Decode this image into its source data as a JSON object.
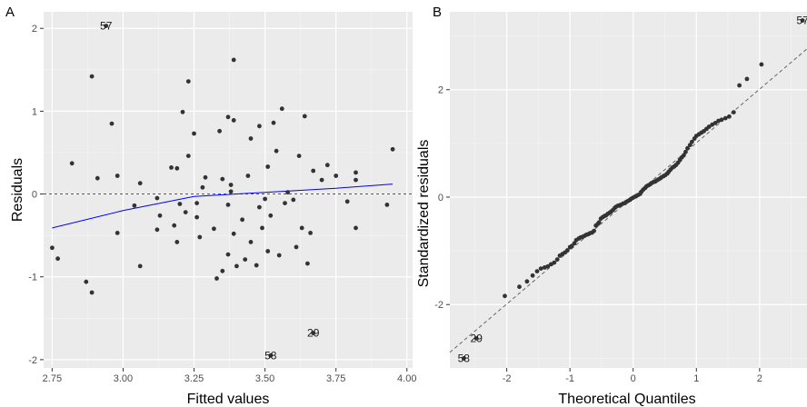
{
  "chart_data": [
    {
      "panel": "A",
      "type": "scatter",
      "xlabel": "Fitted values",
      "ylabel": "Residuals",
      "xlim": [
        2.72,
        4.02
      ],
      "ylim": [
        -2.1,
        2.2
      ],
      "x_ticks": [
        2.75,
        3.0,
        3.25,
        3.5,
        3.75,
        4.0
      ],
      "x_tick_labels": [
        "2.75",
        "3.00",
        "3.25",
        "3.50",
        "3.75",
        "4.00"
      ],
      "y_ticks": [
        -2,
        -1,
        0,
        1,
        2
      ],
      "y_tick_labels": [
        "-2",
        "-1",
        "0",
        "1",
        "2"
      ],
      "grid": true,
      "reference_line": {
        "y": 0,
        "style": "dashed"
      },
      "points": [
        {
          "x": 2.75,
          "y": -0.65
        },
        {
          "x": 2.77,
          "y": -0.78
        },
        {
          "x": 2.82,
          "y": 0.37
        },
        {
          "x": 2.87,
          "y": -1.06
        },
        {
          "x": 2.89,
          "y": -1.19
        },
        {
          "x": 2.89,
          "y": 1.42
        },
        {
          "x": 2.91,
          "y": 0.19
        },
        {
          "x": 2.96,
          "y": 0.85
        },
        {
          "x": 2.98,
          "y": -0.47
        },
        {
          "x": 2.98,
          "y": 0.22
        },
        {
          "x": 3.04,
          "y": -0.14
        },
        {
          "x": 3.06,
          "y": -0.87
        },
        {
          "x": 3.06,
          "y": 0.13
        },
        {
          "x": 3.12,
          "y": -0.05
        },
        {
          "x": 3.12,
          "y": -0.43
        },
        {
          "x": 3.13,
          "y": -0.26
        },
        {
          "x": 3.17,
          "y": 0.32
        },
        {
          "x": 3.18,
          "y": -0.38
        },
        {
          "x": 3.19,
          "y": 0.31
        },
        {
          "x": 3.19,
          "y": -0.58
        },
        {
          "x": 3.2,
          "y": -0.12
        },
        {
          "x": 3.21,
          "y": 0.99
        },
        {
          "x": 3.22,
          "y": -0.22
        },
        {
          "x": 3.23,
          "y": 1.36
        },
        {
          "x": 3.23,
          "y": 0.46
        },
        {
          "x": 3.25,
          "y": 0.73
        },
        {
          "x": 3.26,
          "y": -0.11
        },
        {
          "x": 3.26,
          "y": -0.28
        },
        {
          "x": 3.27,
          "y": -0.52
        },
        {
          "x": 3.28,
          "y": 0.08
        },
        {
          "x": 3.29,
          "y": 0.2
        },
        {
          "x": 3.32,
          "y": -0.42
        },
        {
          "x": 3.33,
          "y": -1.02
        },
        {
          "x": 3.34,
          "y": 0.76
        },
        {
          "x": 3.35,
          "y": -0.93
        },
        {
          "x": 3.35,
          "y": 0.18
        },
        {
          "x": 3.37,
          "y": -0.73
        },
        {
          "x": 3.37,
          "y": -0.13
        },
        {
          "x": 3.37,
          "y": 0.93
        },
        {
          "x": 3.38,
          "y": 0.11
        },
        {
          "x": 3.38,
          "y": 0.03
        },
        {
          "x": 3.39,
          "y": 1.62
        },
        {
          "x": 3.39,
          "y": -0.48
        },
        {
          "x": 3.39,
          "y": 0.89
        },
        {
          "x": 3.4,
          "y": -0.87
        },
        {
          "x": 3.42,
          "y": -0.31
        },
        {
          "x": 3.43,
          "y": -0.79
        },
        {
          "x": 3.44,
          "y": 0.22
        },
        {
          "x": 3.45,
          "y": -0.58
        },
        {
          "x": 3.45,
          "y": 0.67
        },
        {
          "x": 3.47,
          "y": -0.86
        },
        {
          "x": 3.48,
          "y": -0.16
        },
        {
          "x": 3.48,
          "y": 0.82
        },
        {
          "x": 3.49,
          "y": -0.41
        },
        {
          "x": 3.5,
          "y": -0.06
        },
        {
          "x": 3.51,
          "y": -0.69
        },
        {
          "x": 3.51,
          "y": 0.33
        },
        {
          "x": 3.52,
          "y": -0.26
        },
        {
          "x": 3.53,
          "y": 0.86
        },
        {
          "x": 3.54,
          "y": 0.52
        },
        {
          "x": 3.55,
          "y": -0.74
        },
        {
          "x": 3.56,
          "y": 1.03
        },
        {
          "x": 3.57,
          "y": -0.11
        },
        {
          "x": 3.58,
          "y": 0.02
        },
        {
          "x": 3.6,
          "y": -0.07
        },
        {
          "x": 3.61,
          "y": -0.64
        },
        {
          "x": 3.62,
          "y": 0.46
        },
        {
          "x": 3.63,
          "y": -0.41
        },
        {
          "x": 3.64,
          "y": 0.94
        },
        {
          "x": 3.65,
          "y": -0.84
        },
        {
          "x": 3.66,
          "y": -0.47
        },
        {
          "x": 3.67,
          "y": 0.28
        },
        {
          "x": 3.7,
          "y": 0.17
        },
        {
          "x": 3.72,
          "y": 0.35
        },
        {
          "x": 3.75,
          "y": 0.22
        },
        {
          "x": 3.79,
          "y": -0.09
        },
        {
          "x": 3.82,
          "y": 0.17
        },
        {
          "x": 3.82,
          "y": 0.26
        },
        {
          "x": 3.82,
          "y": -0.41
        },
        {
          "x": 3.93,
          "y": -0.13
        },
        {
          "x": 3.95,
          "y": 0.54
        }
      ],
      "smooth_line": {
        "color": "#0000ff",
        "points": [
          [
            2.75,
            -0.41
          ],
          [
            3.0,
            -0.2
          ],
          [
            3.25,
            -0.03
          ],
          [
            3.5,
            0.02
          ],
          [
            3.75,
            0.07
          ],
          [
            3.95,
            0.12
          ]
        ]
      },
      "labeled_points": [
        {
          "x": 2.94,
          "y": 2.03,
          "label": "57"
        },
        {
          "x": 3.52,
          "y": -1.95,
          "label": "58"
        },
        {
          "x": 3.67,
          "y": -1.68,
          "label": "29"
        }
      ]
    },
    {
      "panel": "B",
      "type": "scatter",
      "xlabel": "Theoretical Quantiles",
      "ylabel": "Standardized residuals",
      "xlim": [
        -2.9,
        2.75
      ],
      "ylim": [
        -3.18,
        3.45
      ],
      "x_ticks": [
        -2,
        -1,
        0,
        1,
        2
      ],
      "x_tick_labels": [
        "-2",
        "-1",
        "0",
        "1",
        "2"
      ],
      "y_ticks": [
        -2,
        0,
        2
      ],
      "y_tick_labels": [
        "-2",
        "0",
        "2"
      ],
      "grid": true,
      "reference_line": {
        "intercept": 0.01,
        "slope": 1.0,
        "style": "dashed"
      },
      "points": [
        {
          "x": -2.03,
          "y": -1.84
        },
        {
          "x": -1.8,
          "y": -1.67
        },
        {
          "x": -1.68,
          "y": -1.57
        },
        {
          "x": -1.59,
          "y": -1.46
        },
        {
          "x": -1.52,
          "y": -1.38
        },
        {
          "x": -1.46,
          "y": -1.33
        },
        {
          "x": -1.4,
          "y": -1.31
        },
        {
          "x": -1.35,
          "y": -1.29
        },
        {
          "x": -1.3,
          "y": -1.25
        },
        {
          "x": -1.25,
          "y": -1.22
        },
        {
          "x": -1.2,
          "y": -1.16
        },
        {
          "x": -1.16,
          "y": -1.09
        },
        {
          "x": -1.12,
          "y": -1.06
        },
        {
          "x": -1.08,
          "y": -1.03
        },
        {
          "x": -1.04,
          "y": -0.99
        },
        {
          "x": -1.0,
          "y": -0.93
        },
        {
          "x": -0.97,
          "y": -0.91
        },
        {
          "x": -0.93,
          "y": -0.86
        },
        {
          "x": -0.9,
          "y": -0.8
        },
        {
          "x": -0.86,
          "y": -0.77
        },
        {
          "x": -0.83,
          "y": -0.75
        },
        {
          "x": -0.8,
          "y": -0.74
        },
        {
          "x": -0.77,
          "y": -0.72
        },
        {
          "x": -0.74,
          "y": -0.7
        },
        {
          "x": -0.71,
          "y": -0.69
        },
        {
          "x": -0.68,
          "y": -0.67
        },
        {
          "x": -0.65,
          "y": -0.66
        },
        {
          "x": -0.62,
          "y": -0.63
        },
        {
          "x": -0.59,
          "y": -0.53
        },
        {
          "x": -0.56,
          "y": -0.5
        },
        {
          "x": -0.54,
          "y": -0.47
        },
        {
          "x": -0.51,
          "y": -0.4
        },
        {
          "x": -0.48,
          "y": -0.37
        },
        {
          "x": -0.45,
          "y": -0.35
        },
        {
          "x": -0.43,
          "y": -0.34
        },
        {
          "x": -0.4,
          "y": -0.31
        },
        {
          "x": -0.37,
          "y": -0.29
        },
        {
          "x": -0.35,
          "y": -0.27
        },
        {
          "x": -0.32,
          "y": -0.24
        },
        {
          "x": -0.29,
          "y": -0.2
        },
        {
          "x": -0.27,
          "y": -0.18
        },
        {
          "x": -0.24,
          "y": -0.16
        },
        {
          "x": -0.21,
          "y": -0.15
        },
        {
          "x": -0.19,
          "y": -0.14
        },
        {
          "x": -0.16,
          "y": -0.12
        },
        {
          "x": -0.13,
          "y": -0.11
        },
        {
          "x": -0.11,
          "y": -0.09
        },
        {
          "x": -0.08,
          "y": -0.07
        },
        {
          "x": -0.05,
          "y": -0.05
        },
        {
          "x": -0.03,
          "y": -0.03
        },
        {
          "x": 0.0,
          "y": -0.01
        },
        {
          "x": 0.03,
          "y": 0.01
        },
        {
          "x": 0.05,
          "y": 0.02
        },
        {
          "x": 0.08,
          "y": 0.04
        },
        {
          "x": 0.11,
          "y": 0.06
        },
        {
          "x": 0.13,
          "y": 0.1
        },
        {
          "x": 0.16,
          "y": 0.14
        },
        {
          "x": 0.19,
          "y": 0.17
        },
        {
          "x": 0.21,
          "y": 0.2
        },
        {
          "x": 0.24,
          "y": 0.22
        },
        {
          "x": 0.27,
          "y": 0.24
        },
        {
          "x": 0.29,
          "y": 0.26
        },
        {
          "x": 0.32,
          "y": 0.28
        },
        {
          "x": 0.35,
          "y": 0.29
        },
        {
          "x": 0.37,
          "y": 0.31
        },
        {
          "x": 0.4,
          "y": 0.33
        },
        {
          "x": 0.43,
          "y": 0.35
        },
        {
          "x": 0.45,
          "y": 0.37
        },
        {
          "x": 0.48,
          "y": 0.39
        },
        {
          "x": 0.51,
          "y": 0.41
        },
        {
          "x": 0.54,
          "y": 0.44
        },
        {
          "x": 0.56,
          "y": 0.47
        },
        {
          "x": 0.59,
          "y": 0.51
        },
        {
          "x": 0.62,
          "y": 0.55
        },
        {
          "x": 0.65,
          "y": 0.57
        },
        {
          "x": 0.68,
          "y": 0.6
        },
        {
          "x": 0.71,
          "y": 0.64
        },
        {
          "x": 0.74,
          "y": 0.69
        },
        {
          "x": 0.77,
          "y": 0.74
        },
        {
          "x": 0.8,
          "y": 0.78
        },
        {
          "x": 0.83,
          "y": 0.84
        },
        {
          "x": 0.86,
          "y": 0.91
        },
        {
          "x": 0.9,
          "y": 0.97
        },
        {
          "x": 0.93,
          "y": 1.03
        },
        {
          "x": 0.97,
          "y": 1.09
        },
        {
          "x": 1.0,
          "y": 1.14
        },
        {
          "x": 1.04,
          "y": 1.17
        },
        {
          "x": 1.08,
          "y": 1.2
        },
        {
          "x": 1.12,
          "y": 1.23
        },
        {
          "x": 1.16,
          "y": 1.27
        },
        {
          "x": 1.2,
          "y": 1.31
        },
        {
          "x": 1.25,
          "y": 1.35
        },
        {
          "x": 1.3,
          "y": 1.38
        },
        {
          "x": 1.35,
          "y": 1.42
        },
        {
          "x": 1.4,
          "y": 1.44
        },
        {
          "x": 1.46,
          "y": 1.47
        },
        {
          "x": 1.52,
          "y": 1.5
        },
        {
          "x": 1.59,
          "y": 1.58
        },
        {
          "x": 1.68,
          "y": 2.08
        },
        {
          "x": 1.8,
          "y": 2.2
        },
        {
          "x": 2.03,
          "y": 2.47
        }
      ],
      "labeled_points": [
        {
          "x": -2.48,
          "y": -2.63,
          "label": "29"
        },
        {
          "x": -2.68,
          "y": -3.0,
          "label": "58"
        },
        {
          "x": 2.68,
          "y": 3.29,
          "label": "57"
        }
      ]
    }
  ]
}
